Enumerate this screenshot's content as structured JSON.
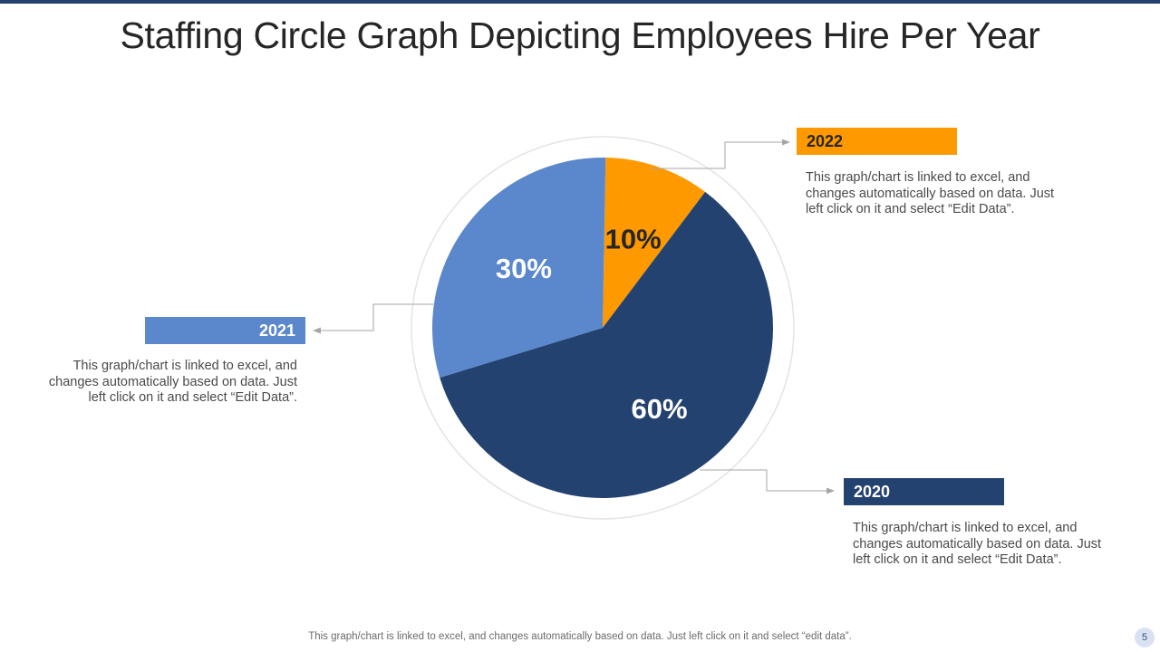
{
  "slide": {
    "title": "Staffing Circle Graph Depicting Employees Hire Per Year",
    "footer": "This graph/chart is linked to excel,  and changes automatically based on data. Just left click on it and select “edit data”.",
    "page_number": "5"
  },
  "callouts": {
    "y2022": {
      "label": "2022",
      "text": "This graph/chart is linked to excel, and changes automatically based on data. Just left click on it and select “Edit Data”."
    },
    "y2021": {
      "label": "2021",
      "text": "This graph/chart is linked to excel, and changes automatically based on data. Just left click on it and select “Edit Data”."
    },
    "y2020": {
      "label": "2020",
      "text": "This graph/chart is linked to excel, and changes automatically based on data. Just left click on it and select “Edit Data”."
    }
  },
  "colors": {
    "y2022": "#ff9900",
    "y2021": "#5b87cc",
    "y2020": "#23426f",
    "accent_bar": "#23406f"
  },
  "chart_data": {
    "type": "pie",
    "categories": [
      "2022",
      "2020",
      "2021"
    ],
    "values": [
      10,
      60,
      30
    ],
    "labels": [
      "10%",
      "60%",
      "30%"
    ],
    "start_angle_deg": 1,
    "direction": "clockwise"
  }
}
